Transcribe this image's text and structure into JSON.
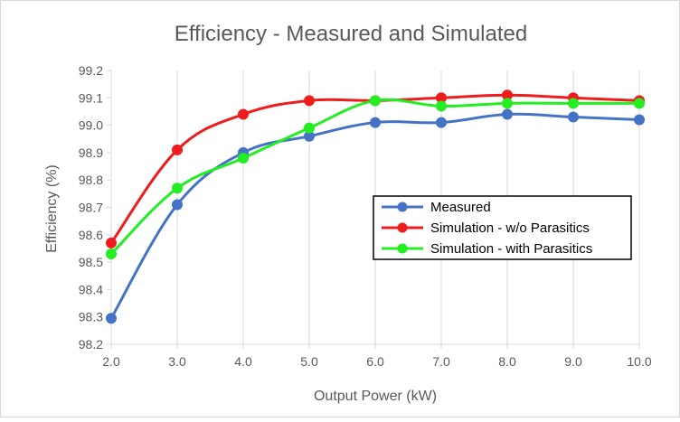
{
  "chart_data": {
    "type": "line",
    "title": "Efficiency - Measured and Simulated",
    "xlabel": "Output Power (kW)",
    "ylabel": "Efficiency (%)",
    "x": [
      2.0,
      3.0,
      4.0,
      5.0,
      6.0,
      7.0,
      8.0,
      9.0,
      10.0
    ],
    "x_tick_labels": [
      "2.0",
      "3.0",
      "4.0",
      "5.0",
      "6.0",
      "7.0",
      "8.0",
      "9.0",
      "10.0"
    ],
    "y_tick_labels": [
      "98.2",
      "98.3",
      "98.4",
      "98.5",
      "98.6",
      "98.7",
      "98.8",
      "98.9",
      "99.0",
      "99.1",
      "99.2"
    ],
    "xlim": [
      2.0,
      10.0
    ],
    "ylim": [
      98.2,
      99.2
    ],
    "grid": "vertical",
    "legend_position": "center-right",
    "series": [
      {
        "name": "Measured",
        "color": "#4472C4",
        "values": [
          98.295,
          98.71,
          98.9,
          98.96,
          99.01,
          99.01,
          99.04,
          99.03,
          99.02
        ]
      },
      {
        "name": "Simulation - w/o Parasitics",
        "color": "#EE1C1C",
        "values": [
          98.57,
          98.91,
          99.04,
          99.09,
          99.09,
          99.1,
          99.11,
          99.1,
          99.09
        ]
      },
      {
        "name": "Simulation - with Parasitics",
        "color": "#22EE22",
        "values": [
          98.53,
          98.77,
          98.88,
          98.99,
          99.09,
          99.07,
          99.08,
          99.08,
          99.08
        ]
      }
    ]
  }
}
